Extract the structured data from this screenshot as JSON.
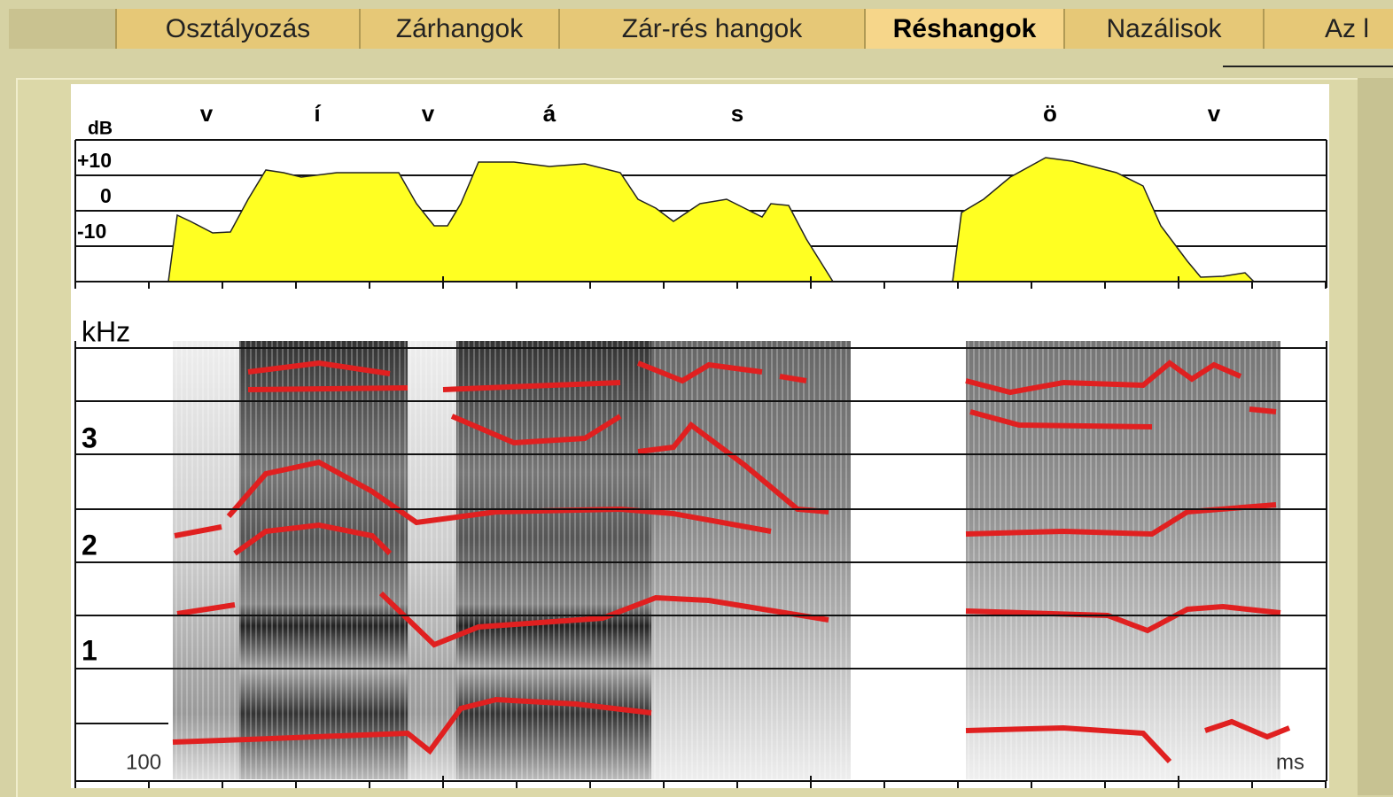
{
  "tabs": [
    {
      "label": "Osztályozás"
    },
    {
      "label": "Zárhangok"
    },
    {
      "label": "Zár-rés hangok"
    },
    {
      "label": "Réshangok",
      "active": true
    },
    {
      "label": "Nazálisok"
    },
    {
      "label": "Az l"
    }
  ],
  "figure": {
    "phonemes": [
      "v",
      "í",
      "v",
      "á",
      "s",
      "ö",
      "v"
    ],
    "intensity_axis": {
      "unit": "dB",
      "labels": [
        "+10",
        "0",
        "-10"
      ]
    },
    "frequency_axis": {
      "unit": "kHz",
      "labels": [
        "3",
        "2",
        "1"
      ]
    },
    "time_axis": {
      "start": "100",
      "unit": "ms"
    }
  }
}
